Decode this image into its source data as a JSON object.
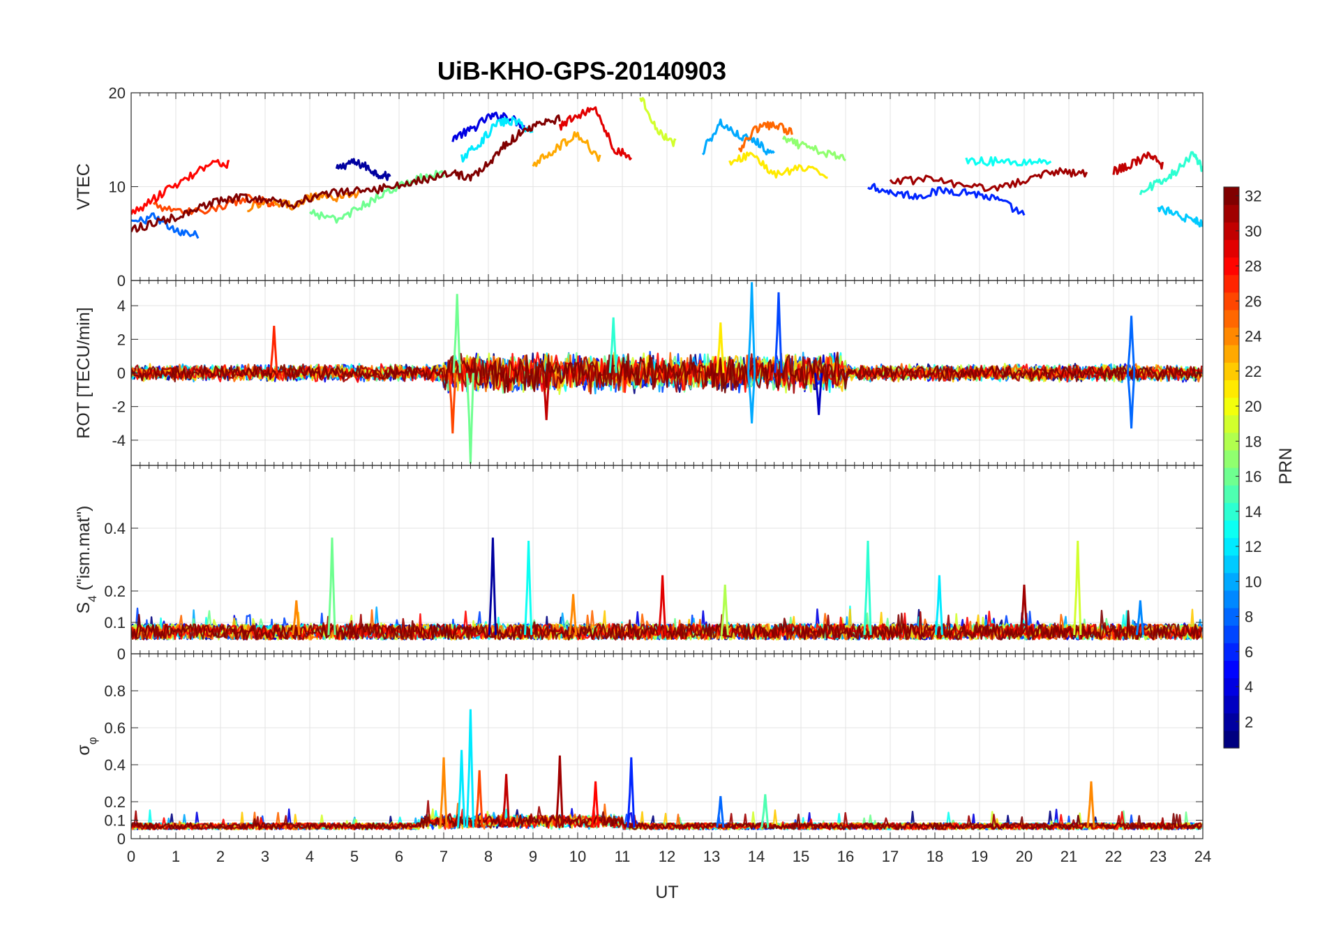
{
  "figure": {
    "title": "UiB-KHO-GPS-20140903",
    "xlabel": "UT",
    "colorbar_label": "PRN"
  },
  "chart_data": [
    {
      "type": "line",
      "panel": "vtec",
      "ylabel": "VTEC",
      "xlim": [
        0,
        24
      ],
      "ylim": [
        0,
        20
      ],
      "yticks": [
        "0",
        "10",
        "20"
      ],
      "ytick_values": [
        0,
        10,
        20
      ],
      "grid": true,
      "series_style": "many satellite traces colored by PRN",
      "series": [
        {
          "prn": 2,
          "x": [
            4.6,
            4.9,
            5.2,
            5.5,
            5.8
          ],
          "y": [
            11.8,
            12.6,
            12.3,
            11.4,
            11.0
          ]
        },
        {
          "prn": 4,
          "x": [
            7.2,
            7.6,
            8.0,
            8.4,
            8.8
          ],
          "y": [
            15.2,
            16.0,
            17.4,
            17.6,
            16.4
          ]
        },
        {
          "prn": 6,
          "x": [
            16.5,
            17.0,
            17.6,
            18.2,
            18.8,
            19.4,
            20.0
          ],
          "y": [
            10.2,
            9.4,
            9.0,
            9.6,
            9.4,
            8.6,
            7.0
          ]
        },
        {
          "prn": 8,
          "x": [
            0,
            0.5,
            1.0,
            1.5
          ],
          "y": [
            6.0,
            6.8,
            5.2,
            4.8
          ]
        },
        {
          "prn": 10,
          "x": [
            12.8,
            13.2,
            13.6,
            14.0,
            14.4
          ],
          "y": [
            13.8,
            16.8,
            15.4,
            14.8,
            13.2
          ]
        },
        {
          "prn": 12,
          "x": [
            7.4,
            7.8,
            8.2,
            8.6,
            9.0
          ],
          "y": [
            13.0,
            14.6,
            16.8,
            17.0,
            15.8
          ]
        },
        {
          "prn": 13,
          "x": [
            18.7,
            19.3,
            20.0,
            20.6
          ],
          "y": [
            12.8,
            12.7,
            12.6,
            12.8
          ]
        },
        {
          "prn": 16,
          "x": [
            4.0,
            4.6,
            5.2,
            5.8,
            6.4,
            7.0
          ],
          "y": [
            7.2,
            6.4,
            8.0,
            9.6,
            10.8,
            11.4
          ]
        },
        {
          "prn": 17,
          "x": [
            14.6,
            15.0,
            15.5,
            16.0
          ],
          "y": [
            15.0,
            14.4,
            13.6,
            13.0
          ]
        },
        {
          "prn": 19,
          "x": [
            11.4,
            11.8,
            12.2
          ],
          "y": [
            19.8,
            15.8,
            14.6
          ]
        },
        {
          "prn": 21,
          "x": [
            13.4,
            13.9,
            14.4,
            15.0,
            15.6
          ],
          "y": [
            12.4,
            13.6,
            11.2,
            12.0,
            11.2
          ]
        },
        {
          "prn": 23,
          "x": [
            9.0,
            9.5,
            10.0,
            10.5
          ],
          "y": [
            12.4,
            14.0,
            15.6,
            13.0
          ]
        },
        {
          "prn": 24,
          "x": [
            2.6,
            3.1,
            3.6,
            4.1,
            4.6,
            5.1
          ],
          "y": [
            7.8,
            8.4,
            8.0,
            9.0,
            8.6,
            9.4
          ]
        },
        {
          "prn": 25,
          "x": [
            13.6,
            14.0,
            14.4,
            14.8
          ],
          "y": [
            13.8,
            16.2,
            16.6,
            15.8
          ]
        },
        {
          "prn": 26,
          "x": [
            0.5,
            1.2,
            1.9,
            2.6,
            3.2
          ],
          "y": [
            8.0,
            7.2,
            7.8,
            8.8,
            8.2
          ]
        },
        {
          "prn": 28,
          "x": [
            0,
            0.6,
            1.2,
            1.8,
            2.2
          ],
          "y": [
            7.0,
            9.0,
            10.8,
            12.6,
            12.4
          ]
        },
        {
          "prn": 29,
          "x": [
            9.6,
            10.0,
            10.4,
            10.8,
            11.2
          ],
          "y": [
            16.4,
            17.6,
            18.4,
            14.0,
            13.2
          ]
        },
        {
          "prn": 30,
          "x": [
            22.0,
            22.4,
            22.8,
            23.1
          ],
          "y": [
            11.6,
            12.4,
            13.4,
            12.2
          ]
        },
        {
          "prn": 32,
          "x": [
            0,
            0.6,
            1.2,
            1.8,
            2.4,
            3.0,
            3.6,
            4.2,
            4.8,
            5.4,
            6.0,
            6.6,
            7.2,
            7.6,
            8.0,
            8.4,
            8.8,
            9.2,
            9.6
          ],
          "y": [
            5.4,
            6.2,
            7.0,
            8.2,
            8.8,
            8.6,
            8.0,
            9.2,
            9.4,
            9.6,
            10.2,
            10.8,
            11.4,
            11.0,
            12.4,
            14.6,
            16.0,
            16.8,
            17.2
          ]
        },
        {
          "prn": 31,
          "x": [
            17.0,
            17.8,
            18.6,
            19.4,
            20.2,
            20.8,
            21.4
          ],
          "y": [
            10.4,
            10.8,
            10.0,
            9.8,
            11.0,
            11.6,
            11.4
          ]
        },
        {
          "prn": 14,
          "x": [
            22.6,
            23.0,
            23.4,
            23.8,
            24.0
          ],
          "y": [
            9.4,
            10.4,
            11.6,
            13.6,
            11.8
          ]
        },
        {
          "prn": 11,
          "x": [
            23.0,
            23.4,
            23.8,
            24.0
          ],
          "y": [
            7.8,
            7.0,
            6.4,
            6.0
          ]
        }
      ]
    },
    {
      "type": "line",
      "panel": "rot",
      "ylabel": "ROT [TECU/min]",
      "xlim": [
        0,
        24
      ],
      "ylim": [
        -5.5,
        5.5
      ],
      "yticks": [
        "-4",
        "-2",
        "0",
        "2",
        "4"
      ],
      "ytick_values": [
        -4,
        -2,
        0,
        2,
        4
      ],
      "grid": true,
      "spikes": [
        {
          "prn": 16,
          "x": 7.3,
          "y": 4.7
        },
        {
          "prn": 16,
          "x": 7.6,
          "y": -5.4
        },
        {
          "prn": 26,
          "x": 7.2,
          "y": -3.6
        },
        {
          "prn": 27,
          "x": 3.2,
          "y": 2.8
        },
        {
          "prn": 10,
          "x": 13.9,
          "y": 5.4
        },
        {
          "prn": 7,
          "x": 14.5,
          "y": 4.8
        },
        {
          "prn": 10,
          "x": 13.9,
          "y": -3.0
        },
        {
          "prn": 8,
          "x": 22.4,
          "y": 3.4
        },
        {
          "prn": 8,
          "x": 22.4,
          "y": -3.3
        },
        {
          "prn": 3,
          "x": 15.4,
          "y": -2.5
        },
        {
          "prn": 30,
          "x": 9.3,
          "y": -2.8
        },
        {
          "prn": 14,
          "x": 10.8,
          "y": 3.3
        },
        {
          "prn": 21,
          "x": 13.2,
          "y": 3.0
        }
      ]
    },
    {
      "type": "line",
      "panel": "s4",
      "ylabel": "S4 (\"ism.mat\")",
      "ylabel_main": "S",
      "ylabel_sub": "4",
      "ylabel_rest": " (\"ism.mat\")",
      "xlim": [
        0,
        24
      ],
      "ylim": [
        0,
        0.6
      ],
      "yticks": [
        "0",
        "0.1",
        "0.2",
        "0.4"
      ],
      "ytick_values": [
        0,
        0.1,
        0.2,
        0.4
      ],
      "grid": true,
      "spikes": [
        {
          "prn": 16,
          "x": 4.5,
          "y": 0.37
        },
        {
          "prn": 2,
          "x": 8.1,
          "y": 0.37
        },
        {
          "prn": 13,
          "x": 8.9,
          "y": 0.36
        },
        {
          "prn": 14,
          "x": 16.5,
          "y": 0.36
        },
        {
          "prn": 19,
          "x": 21.2,
          "y": 0.36
        },
        {
          "prn": 29,
          "x": 11.9,
          "y": 0.25
        },
        {
          "prn": 12,
          "x": 18.1,
          "y": 0.25
        },
        {
          "prn": 31,
          "x": 20.0,
          "y": 0.22
        },
        {
          "prn": 18,
          "x": 13.3,
          "y": 0.22
        },
        {
          "prn": 24,
          "x": 3.7,
          "y": 0.17
        },
        {
          "prn": 24,
          "x": 9.9,
          "y": 0.19
        },
        {
          "prn": 9,
          "x": 22.6,
          "y": 0.17
        }
      ]
    },
    {
      "type": "line",
      "panel": "sigma_phi",
      "ylabel": "σφ",
      "ylabel_main": "σ",
      "ylabel_sub": "φ",
      "xlim": [
        0,
        24
      ],
      "ylim": [
        0,
        1
      ],
      "yticks": [
        "0",
        "0.1",
        "0.2",
        "0.4",
        "0.6",
        "0.8"
      ],
      "ytick_values": [
        0,
        0.1,
        0.2,
        0.4,
        0.6,
        0.8
      ],
      "grid": true,
      "spikes": [
        {
          "prn": 12,
          "x": 7.6,
          "y": 0.7
        },
        {
          "prn": 12,
          "x": 7.4,
          "y": 0.48
        },
        {
          "prn": 24,
          "x": 7.0,
          "y": 0.44
        },
        {
          "prn": 31,
          "x": 9.6,
          "y": 0.45
        },
        {
          "prn": 6,
          "x": 11.2,
          "y": 0.44
        },
        {
          "prn": 30,
          "x": 8.4,
          "y": 0.35
        },
        {
          "prn": 28,
          "x": 10.4,
          "y": 0.31
        },
        {
          "prn": 24,
          "x": 21.5,
          "y": 0.31
        },
        {
          "prn": 26,
          "x": 7.8,
          "y": 0.37
        },
        {
          "prn": 15,
          "x": 14.2,
          "y": 0.24
        },
        {
          "prn": 8,
          "x": 13.2,
          "y": 0.23
        }
      ]
    }
  ],
  "xticks": [
    "0",
    "1",
    "2",
    "3",
    "4",
    "5",
    "6",
    "7",
    "8",
    "9",
    "10",
    "11",
    "12",
    "13",
    "14",
    "15",
    "16",
    "17",
    "18",
    "19",
    "20",
    "21",
    "22",
    "23",
    "24"
  ],
  "colorbar": {
    "colormap": "jet",
    "range": [
      1,
      32
    ],
    "ticks": [
      "2",
      "4",
      "6",
      "8",
      "10",
      "12",
      "14",
      "16",
      "18",
      "20",
      "22",
      "24",
      "26",
      "28",
      "30",
      "32"
    ],
    "tick_values": [
      2,
      4,
      6,
      8,
      10,
      12,
      14,
      16,
      18,
      20,
      22,
      24,
      26,
      28,
      30,
      32
    ]
  }
}
